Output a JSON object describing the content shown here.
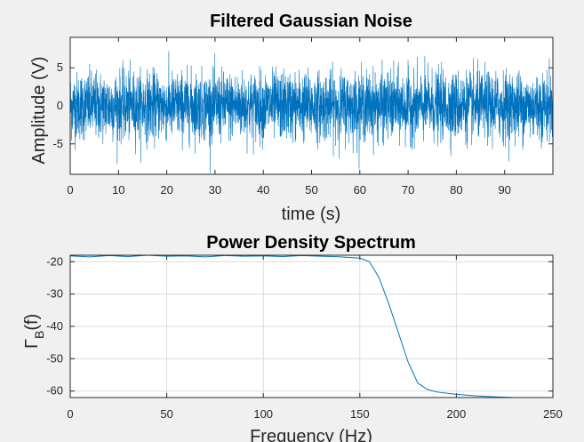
{
  "chart_data": [
    {
      "type": "line",
      "title": "Filtered Gaussian Noise",
      "xlabel": "time (s)",
      "ylabel": "Amplitude (V)",
      "xlim": [
        0,
        100
      ],
      "ylim": [
        -9,
        9
      ],
      "xticks": [
        0,
        10,
        20,
        30,
        40,
        50,
        60,
        70,
        80,
        90
      ],
      "yticks": [
        -5,
        0,
        5
      ],
      "grid": false,
      "color": "#0072bd",
      "signal": {
        "description": "dense noise",
        "std_v": 2.2,
        "peak_v": 9
      }
    },
    {
      "type": "line",
      "title": "Power Density Spectrum",
      "xlabel": "Frequency (Hz)",
      "ylabel": "Γ_B(f)",
      "ylabel_main": "Γ",
      "ylabel_sub": "B",
      "ylabel_paren": "(f)",
      "xlim": [
        0,
        250
      ],
      "ylim": [
        -62,
        -18
      ],
      "xticks": [
        0,
        50,
        100,
        150,
        200,
        250
      ],
      "yticks": [
        -20,
        -30,
        -40,
        -50,
        -60
      ],
      "grid": true,
      "color": "#0072bd",
      "series": [
        {
          "x": [
            0,
            10,
            20,
            30,
            40,
            50,
            60,
            70,
            80,
            90,
            100,
            110,
            120,
            130,
            140,
            150,
            155,
            160,
            165,
            170,
            175,
            180,
            185,
            190,
            200,
            210,
            220,
            230,
            240,
            250
          ],
          "y": [
            -18.2,
            -18.5,
            -18.1,
            -18.4,
            -18.0,
            -18.3,
            -18.2,
            -18.5,
            -18.1,
            -18.3,
            -18.2,
            -18.4,
            -18.1,
            -18.3,
            -18.5,
            -18.9,
            -20,
            -25,
            -33,
            -42,
            -51,
            -57.5,
            -59.5,
            -60.3,
            -61.0,
            -61.5,
            -61.8,
            -62.0,
            -62.0,
            -62.0
          ]
        }
      ]
    }
  ]
}
